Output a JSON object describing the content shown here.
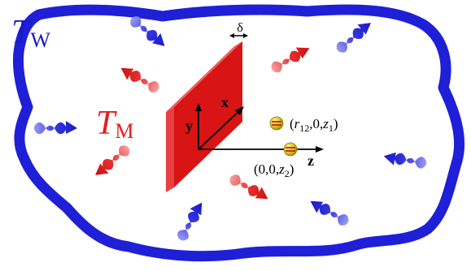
{
  "labels": {
    "wall_temp_symbol": "T",
    "wall_temp_subscript": "W",
    "medium_temp_symbol": "T",
    "medium_temp_subscript": "M",
    "thickness": "δ",
    "axis_x": "x",
    "axis_y": "y",
    "axis_z": "z",
    "point1_open": "(",
    "point1_r": "r",
    "point1_r_sub": "12",
    "point1_mid": ",0,",
    "point1_z": "z",
    "point1_z_sub": "1",
    "point1_close": ")",
    "point2_open": "(0,0,",
    "point2_z": "z",
    "point2_z_sub": "2",
    "point2_close": ")"
  },
  "colors": {
    "wall": "#1f1fd8",
    "wall_text": "#1a1acc",
    "medium_text": "#e81c1c",
    "slab_front": "#d81414",
    "slab_side": "#e63a3a",
    "slab_top": "#f06060",
    "blue_photon": "#2626d6",
    "red_photon": "#e02020",
    "particle_fill": "#d4c21a",
    "particle_stroke": "#8a7a00"
  }
}
